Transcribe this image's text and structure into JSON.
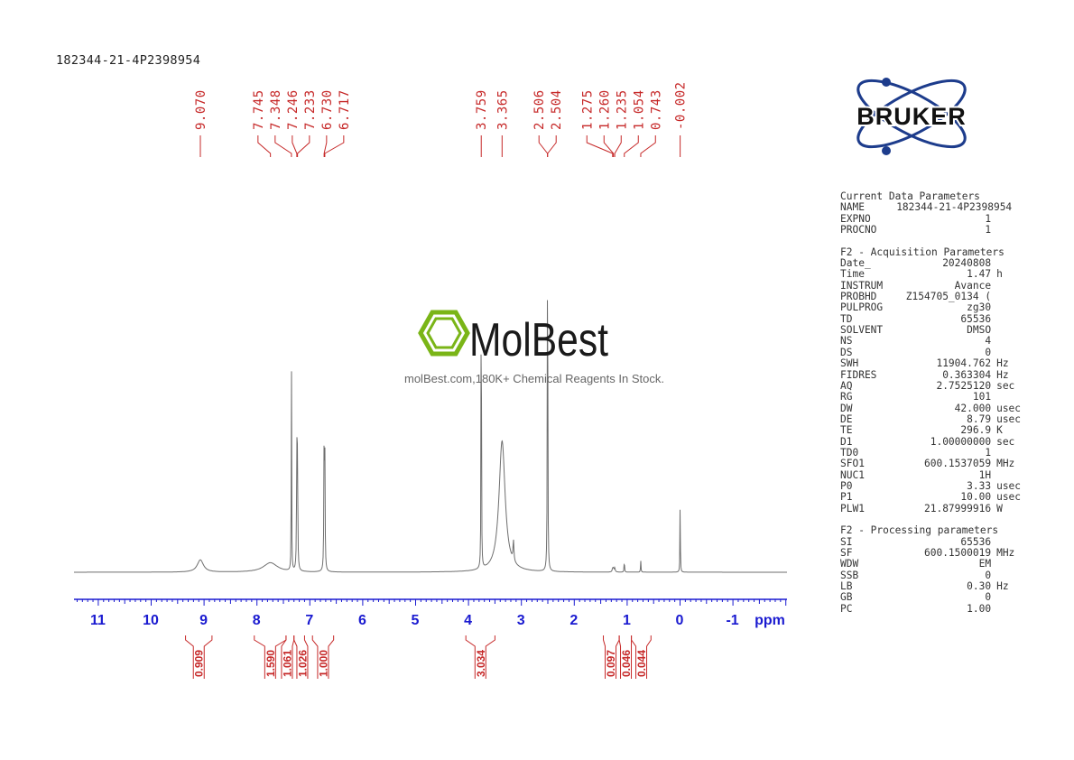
{
  "sample_id": "182344-21-4P2398954",
  "watermark": {
    "brand": "MolBest",
    "tagline": "molBest.com,180K+ Chemical Reagents In Stock."
  },
  "logo": {
    "text": "BRUKER",
    "icon": "bruker-atom-logo"
  },
  "colors": {
    "axis": "#1a1ad0",
    "labels": "#c62828",
    "spectrum": "#6e6e6e",
    "logo": "#1d3c8c",
    "watermark_green": "#7ab517"
  },
  "chart_data": {
    "type": "line",
    "xlabel": "ppm",
    "xlim": [
      11.5,
      -2.0
    ],
    "x_ticks": [
      "11",
      "10",
      "9",
      "8",
      "7",
      "6",
      "5",
      "4",
      "3",
      "2",
      "1",
      "0",
      "-1"
    ],
    "x_tick_values": [
      11,
      10,
      9,
      8,
      7,
      6,
      5,
      4,
      3,
      2,
      1,
      0,
      -1
    ],
    "ylim": [
      0,
      1.0
    ],
    "grid": false,
    "peak_labels": [
      "9.070",
      "7.745",
      "7.348",
      "7.246",
      "7.233",
      "6.730",
      "6.717",
      "3.759",
      "3.365",
      "2.506",
      "2.504",
      "1.275",
      "1.260",
      "1.235",
      "1.054",
      "0.743",
      "-0.002"
    ],
    "peak_values": [
      9.07,
      7.745,
      7.348,
      7.246,
      7.233,
      6.73,
      6.717,
      3.759,
      3.365,
      2.506,
      2.504,
      1.275,
      1.26,
      1.235,
      1.054,
      0.743,
      -0.002
    ],
    "peaks": [
      {
        "ppm": 9.07,
        "height": 0.03,
        "width": 0.07
      },
      {
        "ppm": 7.745,
        "height": 0.023,
        "width": 0.16
      },
      {
        "ppm": 7.348,
        "height": 0.56,
        "width": 0.004
      },
      {
        "ppm": 7.246,
        "height": 0.29,
        "width": 0.006
      },
      {
        "ppm": 7.233,
        "height": 0.28,
        "width": 0.006
      },
      {
        "ppm": 6.73,
        "height": 0.3,
        "width": 0.006
      },
      {
        "ppm": 6.717,
        "height": 0.29,
        "width": 0.006
      },
      {
        "ppm": 3.759,
        "height": 0.99,
        "width": 0.004
      },
      {
        "ppm": 3.365,
        "height": 0.32,
        "width": 0.07
      },
      {
        "ppm": 3.15,
        "height": 0.05,
        "width": 0.01
      },
      {
        "ppm": 2.505,
        "height": 0.99,
        "width": 0.005
      },
      {
        "ppm": 1.275,
        "height": 0.008,
        "width": 0.01
      },
      {
        "ppm": 1.26,
        "height": 0.008,
        "width": 0.01
      },
      {
        "ppm": 1.235,
        "height": 0.01,
        "width": 0.01
      },
      {
        "ppm": 1.054,
        "height": 0.03,
        "width": 0.005
      },
      {
        "ppm": 0.743,
        "height": 0.028,
        "width": 0.005
      },
      {
        "ppm": -0.002,
        "height": 0.19,
        "width": 0.004
      }
    ],
    "integrals": [
      {
        "label": "0.909",
        "from": 9.35,
        "to": 8.85
      },
      {
        "label": "1.590",
        "from": 8.05,
        "to": 7.45
      },
      {
        "label": "1.061",
        "from": 7.45,
        "to": 7.3
      },
      {
        "label": "1.026",
        "from": 7.3,
        "to": 7.1
      },
      {
        "label": "1.000",
        "from": 6.95,
        "to": 6.55
      },
      {
        "label": "3.034",
        "from": 4.05,
        "to": 3.5
      },
      {
        "label": "0.097",
        "from": 1.45,
        "to": 1.15
      },
      {
        "label": "0.046",
        "from": 1.15,
        "to": 0.92
      },
      {
        "label": "0.044",
        "from": 0.92,
        "to": 0.55
      }
    ]
  },
  "parameters": {
    "current_heading": "Current Data Parameters",
    "current": [
      {
        "name": "NAME",
        "value": "182344-21-4P2398954",
        "unit": ""
      },
      {
        "name": "EXPNO",
        "value": "1",
        "unit": ""
      },
      {
        "name": "PROCNO",
        "value": "1",
        "unit": ""
      }
    ],
    "acq_heading": "F2 - Acquisition Parameters",
    "acq": [
      {
        "name": "Date_",
        "value": "20240808",
        "unit": ""
      },
      {
        "name": "Time",
        "value": "1.47",
        "unit": "h"
      },
      {
        "name": "INSTRUM",
        "value": "Avance",
        "unit": ""
      },
      {
        "name": "PROBHD",
        "value": "Z154705_0134 (",
        "unit": ""
      },
      {
        "name": "PULPROG",
        "value": "zg30",
        "unit": ""
      },
      {
        "name": "TD",
        "value": "65536",
        "unit": ""
      },
      {
        "name": "SOLVENT",
        "value": "DMSO",
        "unit": ""
      },
      {
        "name": "NS",
        "value": "4",
        "unit": ""
      },
      {
        "name": "DS",
        "value": "0",
        "unit": ""
      },
      {
        "name": "SWH",
        "value": "11904.762",
        "unit": "Hz"
      },
      {
        "name": "FIDRES",
        "value": "0.363304",
        "unit": "Hz"
      },
      {
        "name": "AQ",
        "value": "2.7525120",
        "unit": "sec"
      },
      {
        "name": "RG",
        "value": "101",
        "unit": ""
      },
      {
        "name": "DW",
        "value": "42.000",
        "unit": "usec"
      },
      {
        "name": "DE",
        "value": "8.79",
        "unit": "usec"
      },
      {
        "name": "TE",
        "value": "296.9",
        "unit": "K"
      },
      {
        "name": "D1",
        "value": "1.00000000",
        "unit": "sec"
      },
      {
        "name": "TD0",
        "value": "1",
        "unit": ""
      },
      {
        "name": "SFO1",
        "value": "600.1537059",
        "unit": "MHz"
      },
      {
        "name": "NUC1",
        "value": "1H",
        "unit": ""
      },
      {
        "name": "P0",
        "value": "3.33",
        "unit": "usec"
      },
      {
        "name": "P1",
        "value": "10.00",
        "unit": "usec"
      },
      {
        "name": "PLW1",
        "value": "21.87999916",
        "unit": "W"
      }
    ],
    "proc_heading": "F2 - Processing parameters",
    "proc": [
      {
        "name": "SI",
        "value": "65536",
        "unit": ""
      },
      {
        "name": "SF",
        "value": "600.1500019",
        "unit": "MHz"
      },
      {
        "name": "WDW",
        "value": "EM",
        "unit": ""
      },
      {
        "name": "SSB",
        "value": "0",
        "unit": ""
      },
      {
        "name": "LB",
        "value": "0.30",
        "unit": "Hz"
      },
      {
        "name": "GB",
        "value": "0",
        "unit": ""
      },
      {
        "name": "PC",
        "value": "1.00",
        "unit": ""
      }
    ]
  }
}
